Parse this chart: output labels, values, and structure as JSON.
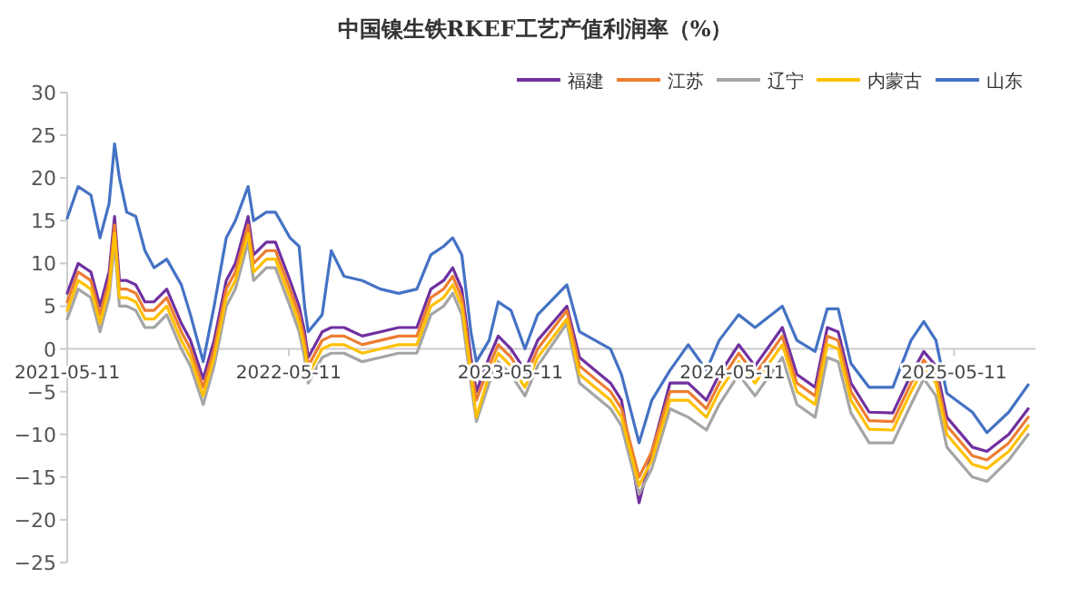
{
  "chart_data": {
    "type": "line",
    "title": "中国镍生铁RKEF工艺产值利润率（%）",
    "x": [
      "2021-05-11",
      "2021-05-29",
      "2021-06-19",
      "2021-07-04",
      "2021-07-19",
      "2021-07-28",
      "2021-08-05",
      "2021-08-17",
      "2021-09-01",
      "2021-09-16",
      "2021-10-01",
      "2021-10-22",
      "2021-11-15",
      "2021-11-30",
      "2021-12-21",
      "2022-01-08",
      "2022-01-28",
      "2022-02-12",
      "2022-03-05",
      "2022-03-14",
      "2022-04-04",
      "2022-04-19",
      "2022-05-13",
      "2022-05-28",
      "2022-06-06",
      "2022-06-12",
      "2022-07-05",
      "2022-07-20",
      "2022-08-10",
      "2022-09-09",
      "2022-10-09",
      "2022-11-08",
      "2022-12-08",
      "2022-12-31",
      "2023-01-21",
      "2023-02-05",
      "2023-02-20",
      "2023-03-07",
      "2023-03-16",
      "2023-04-06",
      "2023-04-21",
      "2023-05-12",
      "2023-06-04",
      "2023-06-25",
      "2023-08-12",
      "2023-09-02",
      "2023-10-23",
      "2023-11-10",
      "2023-12-09",
      "2023-12-30",
      "2024-01-29",
      "2024-02-28",
      "2024-03-29",
      "2024-04-19",
      "2024-05-21",
      "2024-06-17",
      "2024-08-01",
      "2024-08-25",
      "2024-09-24",
      "2024-10-14",
      "2024-11-01",
      "2024-11-22",
      "2024-12-22",
      "2025-01-30",
      "2025-03-01",
      "2025-03-22",
      "2025-04-11",
      "2025-04-29",
      "2025-06-10",
      "2025-07-04",
      "2025-08-09",
      "2025-09-10"
    ],
    "series": [
      {
        "name": "福建",
        "color": "#7030a0",
        "values": [
          6.5,
          10,
          9,
          5,
          9,
          15.5,
          8,
          8,
          7.5,
          5.5,
          5.5,
          7,
          3,
          1,
          -3.5,
          1,
          8,
          10,
          15.5,
          11,
          12.5,
          12.5,
          8,
          5,
          2,
          -1,
          2,
          2.5,
          2.5,
          1.5,
          2,
          2.5,
          2.5,
          7,
          8,
          9.5,
          7,
          -1,
          -5,
          -1,
          1.5,
          0,
          -2.5,
          1,
          5,
          -1,
          -4,
          -6,
          -18,
          -12,
          -4,
          -4,
          -6,
          -3,
          0.5,
          -2,
          2.5,
          -3,
          -4.5,
          2.5,
          2,
          -4,
          -7.4,
          -7.5,
          -3,
          -0.3,
          -2,
          -8,
          -11.5,
          -12,
          -10,
          -7
        ]
      },
      {
        "name": "江苏",
        "color": "#ed7d31",
        "values": [
          5.5,
          9,
          8,
          4,
          8,
          14.5,
          7,
          7,
          6.5,
          4.5,
          4.5,
          6,
          2,
          0,
          -4.5,
          0,
          7,
          9,
          14.5,
          10,
          11.5,
          11.5,
          7,
          4,
          1,
          -2,
          1,
          1.5,
          1.5,
          0.5,
          1,
          1.5,
          1.5,
          6,
          7,
          8.5,
          6,
          -2,
          -6,
          -2,
          0.5,
          -1,
          -3.5,
          0,
          4.5,
          -2,
          -5,
          -7,
          -15,
          -12,
          -5,
          -5,
          -7,
          -4,
          -0.5,
          -3,
          1.5,
          -4,
          -5.5,
          1.5,
          1,
          -5,
          -8.4,
          -8.5,
          -4,
          -1.3,
          -3,
          -9,
          -12.5,
          -13,
          -11,
          -8
        ]
      },
      {
        "name": "辽宁",
        "color": "#a5a5a5",
        "values": [
          3.5,
          7,
          6,
          2,
          6,
          12.5,
          5,
          5,
          4.5,
          2.5,
          2.5,
          4,
          0,
          -2,
          -6.5,
          -2,
          5,
          7,
          12.5,
          8,
          9.5,
          9.5,
          5,
          2,
          -1,
          -4,
          -1,
          -0.5,
          -0.5,
          -1.5,
          -1,
          -0.5,
          -0.5,
          4,
          5,
          6.5,
          4,
          -4,
          -8.5,
          -4,
          -1.5,
          -3,
          -5.5,
          -2,
          3,
          -4,
          -7,
          -9,
          -17,
          -14,
          -7,
          -8,
          -9.5,
          -6.5,
          -3,
          -5.5,
          -1,
          -6.5,
          -8,
          -1,
          -1.5,
          -7.5,
          -11,
          -11,
          -6.5,
          -3.5,
          -5.5,
          -11.5,
          -15,
          -15.5,
          -13,
          -10
        ]
      },
      {
        "name": "内蒙古",
        "color": "#ffc000",
        "values": [
          4.5,
          8,
          7,
          3,
          7,
          13.5,
          6,
          6,
          5.5,
          3.5,
          3.5,
          5,
          1,
          -1,
          -5.5,
          -1,
          6,
          8,
          13.5,
          9,
          10.5,
          10.5,
          6,
          3,
          0,
          -3,
          0,
          0.5,
          0.5,
          -0.5,
          0,
          0.5,
          0.5,
          5,
          6,
          7.5,
          5,
          -3,
          -8,
          -3,
          -0.5,
          -2,
          -4.5,
          -1,
          3.5,
          -3,
          -6,
          -8,
          -16,
          -13,
          -6,
          -6,
          -8,
          -5,
          -1.5,
          -4,
          0.5,
          -5,
          -6.5,
          0.5,
          0,
          -6,
          -9.4,
          -9.5,
          -5,
          -2.3,
          -4,
          -10,
          -13.5,
          -14,
          -12,
          -9
        ]
      },
      {
        "name": "山东",
        "color": "#4472c4",
        "values": [
          15.3,
          19,
          18,
          13,
          17,
          24,
          20,
          16,
          15.5,
          11.5,
          9.5,
          10.5,
          7.5,
          4,
          -1.5,
          5,
          13,
          15,
          19,
          15,
          16,
          16,
          13,
          12,
          5,
          2,
          4,
          11.5,
          8.5,
          8,
          7,
          6.5,
          7,
          11,
          12,
          13,
          11,
          2,
          -1.5,
          1,
          5.5,
          4.5,
          0,
          4,
          7.5,
          2,
          0,
          -3,
          -11,
          -6,
          -2.5,
          0.5,
          -2.5,
          1,
          4,
          2.5,
          5,
          1,
          -0.3,
          4.7,
          4.7,
          -1.7,
          -4.5,
          -4.5,
          1,
          3.2,
          1,
          -5.2,
          -7.4,
          -9.8,
          -7.4,
          -4.2
        ]
      }
    ],
    "xlim": [
      "2021-05-11",
      "2025-09-22"
    ],
    "xticks": [
      "2021-05-11",
      "2022-05-11",
      "2023-05-11",
      "2024-05-11",
      "2025-05-11"
    ],
    "ylim": [
      -25,
      30
    ],
    "yticks": [
      -25,
      -20,
      -15,
      -10,
      -5,
      0,
      5,
      10,
      15,
      20,
      25,
      30
    ],
    "legend": "top right"
  }
}
